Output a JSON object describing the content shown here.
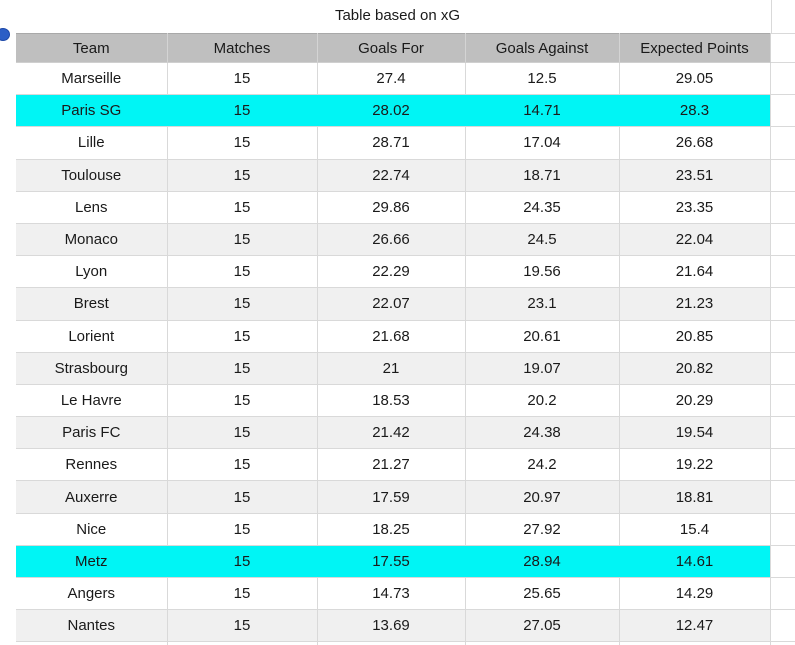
{
  "title": "Table based on xG",
  "colors": {
    "header_bg": "#BFBFBF",
    "row_alt_bg": "#F0F0F0",
    "highlight_bg": "#00F5F5",
    "grid_line": "#D9D9D9",
    "text": "#1A1A1A",
    "marker_blue": "#2B5EC6"
  },
  "table": {
    "columns": [
      "Team",
      "Matches",
      "Goals For",
      "Goals Against",
      "Expected Points"
    ],
    "rows": [
      {
        "team": "Marseille",
        "matches": "15",
        "goals_for": "27.4",
        "goals_against": "12.5",
        "expected_points": "29.05",
        "highlight": false
      },
      {
        "team": "Paris SG",
        "matches": "15",
        "goals_for": "28.02",
        "goals_against": "14.71",
        "expected_points": "28.3",
        "highlight": true
      },
      {
        "team": "Lille",
        "matches": "15",
        "goals_for": "28.71",
        "goals_against": "17.04",
        "expected_points": "26.68",
        "highlight": false
      },
      {
        "team": "Toulouse",
        "matches": "15",
        "goals_for": "22.74",
        "goals_against": "18.71",
        "expected_points": "23.51",
        "highlight": false
      },
      {
        "team": "Lens",
        "matches": "15",
        "goals_for": "29.86",
        "goals_against": "24.35",
        "expected_points": "23.35",
        "highlight": false
      },
      {
        "team": "Monaco",
        "matches": "15",
        "goals_for": "26.66",
        "goals_against": "24.5",
        "expected_points": "22.04",
        "highlight": false
      },
      {
        "team": "Lyon",
        "matches": "15",
        "goals_for": "22.29",
        "goals_against": "19.56",
        "expected_points": "21.64",
        "highlight": false
      },
      {
        "team": "Brest",
        "matches": "15",
        "goals_for": "22.07",
        "goals_against": "23.1",
        "expected_points": "21.23",
        "highlight": false
      },
      {
        "team": "Lorient",
        "matches": "15",
        "goals_for": "21.68",
        "goals_against": "20.61",
        "expected_points": "20.85",
        "highlight": false
      },
      {
        "team": "Strasbourg",
        "matches": "15",
        "goals_for": "21",
        "goals_against": "19.07",
        "expected_points": "20.82",
        "highlight": false
      },
      {
        "team": "Le Havre",
        "matches": "15",
        "goals_for": "18.53",
        "goals_against": "20.2",
        "expected_points": "20.29",
        "highlight": false
      },
      {
        "team": "Paris FC",
        "matches": "15",
        "goals_for": "21.42",
        "goals_against": "24.38",
        "expected_points": "19.54",
        "highlight": false
      },
      {
        "team": "Rennes",
        "matches": "15",
        "goals_for": "21.27",
        "goals_against": "24.2",
        "expected_points": "19.22",
        "highlight": false
      },
      {
        "team": "Auxerre",
        "matches": "15",
        "goals_for": "17.59",
        "goals_against": "20.97",
        "expected_points": "18.81",
        "highlight": false
      },
      {
        "team": "Nice",
        "matches": "15",
        "goals_for": "18.25",
        "goals_against": "27.92",
        "expected_points": "15.4",
        "highlight": false
      },
      {
        "team": "Metz",
        "matches": "15",
        "goals_for": "17.55",
        "goals_against": "28.94",
        "expected_points": "14.61",
        "highlight": true
      },
      {
        "team": "Angers",
        "matches": "15",
        "goals_for": "14.73",
        "goals_against": "25.65",
        "expected_points": "14.29",
        "highlight": false
      },
      {
        "team": "Nantes",
        "matches": "15",
        "goals_for": "13.69",
        "goals_against": "27.05",
        "expected_points": "12.47",
        "highlight": false
      }
    ]
  }
}
